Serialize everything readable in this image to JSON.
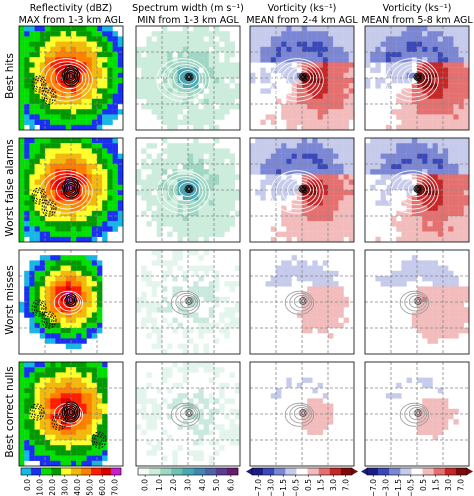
{
  "figure": {
    "columns": [
      {
        "title_line1": "Reflectivity (dBZ)",
        "title_line2": "MAX from 1-3 km AGL",
        "field": "reflectivity"
      },
      {
        "title_line1": "Spectrum width (m s⁻¹)",
        "title_line2": "MIN from 1-3 km AGL",
        "field": "spectrum_width"
      },
      {
        "title_line1": "Vorticity (ks⁻¹)",
        "title_line2": "MEAN from 2-4 km AGL",
        "field": "vorticity"
      },
      {
        "title_line1": "Vorticity (ks⁻¹)",
        "title_line2": "MEAN from 5-8 km AGL",
        "field": "vorticity"
      }
    ],
    "rows": [
      {
        "label": "Best hits",
        "strength": 1.0,
        "reflectivity_extent": "large"
      },
      {
        "label": "Worst false alarms",
        "strength": 0.9,
        "reflectivity_extent": "large"
      },
      {
        "label": "Worst misses",
        "strength": 0.25,
        "reflectivity_extent": "medium"
      },
      {
        "label": "Best correct nulls",
        "strength": 0.15,
        "reflectivity_extent": "large"
      }
    ],
    "colorbars": [
      {
        "name": "reflectivity-colorbar",
        "ticks": [
          "0.0",
          "10.0",
          "20.0",
          "30.0",
          "40.0",
          "50.0",
          "60.0",
          "70.0"
        ],
        "colors": [
          "#16b6e5",
          "#1a2ff0",
          "#00e000",
          "#009a00",
          "#ffff2b",
          "#f2b80b",
          "#ff7f00",
          "#ff1c00",
          "#d60000",
          "#c81dd0"
        ]
      },
      {
        "name": "spectrum-width-colorbar",
        "ticks": [
          "0.0",
          "1.0",
          "2.0",
          "3.0",
          "4.0",
          "5.0",
          "6.0"
        ],
        "colors": [
          "#f2fbf4",
          "#ccecdc",
          "#a0d7c4",
          "#6fc1b2",
          "#4aa8b4",
          "#3f87b4",
          "#4b63a8",
          "#5a3d91",
          "#6a1a73"
        ]
      },
      {
        "name": "vorticity-2-4km-colorbar",
        "ticks": [
          "−7.0",
          "−3.0",
          "−1.5",
          "−0.5",
          "0.5",
          "1.5",
          "3.0",
          "7.0"
        ],
        "colors": [
          "#1c1e87",
          "#3a48b8",
          "#7b87d4",
          "#c6cbec",
          "#ffffff",
          "#f2bcbc",
          "#e57070",
          "#c52628",
          "#7f0a0a"
        ]
      },
      {
        "name": "vorticity-5-8km-colorbar",
        "ticks": [
          "−7.0",
          "−3.0",
          "−1.5",
          "−0.5",
          "0.5",
          "1.5",
          "3.0",
          "7.0"
        ],
        "colors": [
          "#1c1e87",
          "#3a48b8",
          "#7b87d4",
          "#c6cbec",
          "#ffffff",
          "#f2bcbc",
          "#e57070",
          "#c52628",
          "#7f0a0a"
        ]
      }
    ]
  }
}
